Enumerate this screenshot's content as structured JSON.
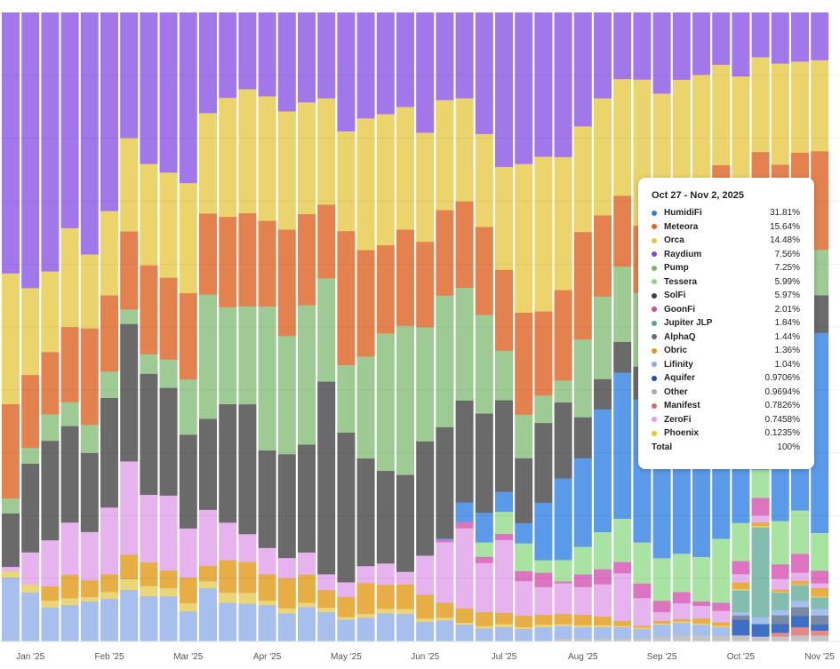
{
  "chart_data": {
    "type": "bar",
    "stacked": true,
    "normalized_percent": true,
    "title": "",
    "xlabel": "",
    "ylabel": "",
    "ylim": [
      0,
      100
    ],
    "grid": true,
    "bar_count": 42,
    "first_week": "Dec 30, 2024",
    "last_week": "Oct 27, 2025",
    "x_ticks": [
      {
        "bar": 1,
        "label": "Jan '25"
      },
      {
        "bar": 5,
        "label": "Feb '25"
      },
      {
        "bar": 9,
        "label": "Mar '25"
      },
      {
        "bar": 13,
        "label": "Apr '25"
      },
      {
        "bar": 17,
        "label": "May '25"
      },
      {
        "bar": 21,
        "label": "Jun '25"
      },
      {
        "bar": 25,
        "label": "Jul '25"
      },
      {
        "bar": 29,
        "label": "Aug '25"
      },
      {
        "bar": 33,
        "label": "Sep '25"
      },
      {
        "bar": 37,
        "label": "Oct '25"
      },
      {
        "bar": 41,
        "label": "Nov '25"
      }
    ],
    "series": [
      {
        "name": "Other",
        "color": "#c4c4c4",
        "values": [
          0,
          0,
          0,
          0,
          0,
          0,
          0,
          0,
          0,
          0,
          0,
          0,
          0,
          0,
          0,
          0,
          0,
          0,
          0,
          0,
          0,
          0,
          0,
          0,
          0,
          0,
          0,
          0,
          0.5,
          0.5,
          0.5,
          0.5,
          0.5,
          0.7,
          1,
          1,
          1,
          1,
          0.8,
          0.8,
          1,
          0.9694
        ]
      },
      {
        "name": "Manifest",
        "color": "#e08a8a",
        "values": [
          0,
          0,
          0,
          0,
          0,
          0,
          0,
          0,
          0,
          0,
          0,
          0,
          0,
          0,
          0,
          0,
          0,
          0,
          0,
          0,
          0,
          0,
          0,
          0,
          0,
          0,
          0,
          0,
          0,
          0,
          0,
          0,
          0,
          0,
          0,
          0,
          0,
          0,
          0,
          0.6,
          1.3,
          0.7826
        ]
      },
      {
        "name": "Aquifer",
        "color": "#3f6fc4",
        "values": [
          0,
          0,
          0,
          0,
          0,
          0,
          0,
          0,
          0,
          0,
          0,
          0,
          0,
          0,
          0,
          0,
          0,
          0,
          0,
          0,
          0,
          0,
          0,
          0,
          0,
          0,
          0,
          0,
          0,
          0,
          0,
          0,
          0,
          0,
          0,
          0,
          0,
          2.5,
          2,
          1.4,
          1.8,
          0.9706
        ]
      },
      {
        "name": "AlphaQ",
        "color": "#7b8aa4",
        "values": [
          0,
          0,
          0,
          0,
          0,
          0,
          0,
          0,
          0,
          0,
          0,
          0,
          0,
          0,
          0,
          0,
          0,
          0,
          0,
          0,
          0,
          0,
          0,
          0,
          0,
          0,
          0,
          0,
          0,
          0,
          0,
          0,
          0,
          0,
          0,
          0,
          0,
          0.7,
          0,
          1.4,
          1.4,
          1.44
        ]
      },
      {
        "name": "Lifinity",
        "color": "#a6bfec",
        "values": [
          10.2,
          7.8,
          5.4,
          5.8,
          6.4,
          6.8,
          8.2,
          7.2,
          7.2,
          4.8,
          8.5,
          6.2,
          6.0,
          5.8,
          4.5,
          5.5,
          4.7,
          3.5,
          3.8,
          4.5,
          4.4,
          3.1,
          3.4,
          2.7,
          2.1,
          2.3,
          2.0,
          2.3,
          2.0,
          1.8,
          1.8,
          1.8,
          1.5,
          2.0,
          2.0,
          1.7,
          1.3,
          0.5,
          1.1,
          0.8,
          1.0,
          1.04
        ]
      },
      {
        "name": "Jupiter JLP",
        "color": "#82bdb0",
        "values": [
          0,
          0,
          0,
          0,
          0,
          0,
          0,
          0,
          0,
          0,
          0,
          0,
          0,
          0,
          0,
          0,
          0,
          0,
          0,
          0,
          0,
          0,
          0,
          0,
          0,
          0,
          0,
          0,
          0,
          0,
          0,
          0,
          0,
          0,
          0,
          0,
          0,
          3.5,
          14.3,
          2.8,
          2.5,
          1.84
        ]
      },
      {
        "name": "Phoenix",
        "color": "#ebd579",
        "values": [
          1,
          1.3,
          1.1,
          1.1,
          0.7,
          1.1,
          1.7,
          1.6,
          1.3,
          1.3,
          1.1,
          1.6,
          1.7,
          0.7,
          0.8,
          0.7,
          0.7,
          0.4,
          0.6,
          0.7,
          0.8,
          0.5,
          0.4,
          0.3,
          0.4,
          0.5,
          0.3,
          0.4,
          0.3,
          0.3,
          0.3,
          0.2,
          0.2,
          0.2,
          0.2,
          0.2,
          0.2,
          0.2,
          0.2,
          0.1,
          0.1,
          0.1235
        ]
      },
      {
        "name": "Obric",
        "color": "#e6ae45",
        "values": [
          0,
          0,
          2.3,
          3.7,
          2.7,
          2.8,
          3.9,
          3.8,
          2.8,
          4.1,
          2.5,
          5.2,
          4.9,
          4.2,
          4.8,
          4.5,
          2.8,
          3.2,
          4.9,
          3.8,
          3.9,
          3.7,
          2.4,
          2.3,
          2.2,
          1.8,
          1.8,
          1.6,
          1.6,
          1.7,
          1.4,
          0.8,
          0.3,
          0.4,
          0.4,
          0.8,
          0.6,
          1.1,
          0.6,
          0.4,
          0.6,
          1.36
        ]
      },
      {
        "name": "ZeroFi",
        "color": "#e7b3ef",
        "values": [
          0.7,
          5.1,
          7.3,
          8.3,
          7.7,
          10.6,
          14.8,
          10.7,
          11.9,
          7.8,
          8.9,
          6.0,
          4.4,
          4.2,
          3.2,
          3.5,
          2.5,
          2.3,
          2.7,
          3.4,
          2.0,
          6.1,
          9.6,
          12.7,
          7.8,
          11.6,
          5.5,
          4.4,
          4.9,
          4.4,
          5.1,
          7.6,
          4.4,
          1.4,
          2.5,
          2.0,
          1.8,
          1.3,
          1.1,
          1.7,
          1.3,
          0.7458
        ]
      },
      {
        "name": "GoonFi",
        "color": "#dc74c2",
        "values": [
          0,
          0,
          0,
          0,
          0,
          0,
          0,
          0,
          0,
          0,
          0,
          0,
          0,
          0,
          0,
          0,
          0,
          0,
          0,
          0,
          0,
          0,
          0.4,
          1,
          1,
          1,
          1.6,
          2.3,
          0.3,
          2,
          2.4,
          1.8,
          2.3,
          1.8,
          1.8,
          0.7,
          1.3,
          2.1,
          2.8,
          2.3,
          3,
          2.01
        ]
      },
      {
        "name": "Tessera",
        "color": "#a9e3a1",
        "values": [
          0,
          0,
          0,
          0,
          0,
          0,
          0,
          0,
          0,
          0,
          0,
          0,
          0,
          0,
          0,
          0,
          0,
          0,
          0,
          0,
          0,
          0,
          0,
          0,
          2.3,
          3.5,
          4.4,
          2,
          3.4,
          4.4,
          5.9,
          6.9,
          6.5,
          6.8,
          6.1,
          7.1,
          10.2,
          6.1,
          4.5,
          6.9,
          6.9,
          5.99
        ]
      },
      {
        "name": "HumidiFi",
        "color": "#5a9ae8",
        "values": [
          0,
          0,
          0,
          0,
          0,
          0,
          0,
          0,
          0,
          0,
          0,
          0,
          0,
          0,
          0,
          0,
          0,
          0,
          0,
          0,
          0,
          0,
          0.2,
          3.1,
          4.7,
          3.2,
          3.2,
          9.2,
          13.0,
          14.1,
          19.5,
          23.3,
          22.6,
          35,
          34,
          34,
          32,
          30,
          20,
          30,
          29,
          31.81
        ]
      },
      {
        "name": "SolFi",
        "color": "#6b6a6b",
        "values": [
          8.5,
          14.1,
          15.8,
          15.3,
          12.6,
          17.4,
          21.8,
          19.2,
          17.1,
          14.9,
          14.5,
          18.9,
          20.5,
          15.5,
          16.5,
          17.2,
          30.6,
          23.7,
          17.1,
          14.7,
          15.4,
          17.8,
          17.7,
          16.2,
          15.8,
          14.6,
          10.3,
          12.7,
          12.1,
          6.5,
          4.8,
          4.9,
          5.2,
          3,
          3.5,
          4,
          5,
          5,
          5,
          5,
          5.5,
          5.97
        ]
      },
      {
        "name": "Pump",
        "color": "#9ecb94",
        "values": [
          2.4,
          2.5,
          4.2,
          3.8,
          4.5,
          4.2,
          2.3,
          3.1,
          4.5,
          8.8,
          19.8,
          15.5,
          15.5,
          22.9,
          18.8,
          22.2,
          16.4,
          10.7,
          16.2,
          21.8,
          23.7,
          17.8,
          20.9,
          17.9,
          15.7,
          7.9,
          6.9,
          4.4,
          3.5,
          12.4,
          13.1,
          12,
          11.7,
          8,
          8,
          8,
          7,
          7,
          8,
          7,
          7,
          7.25
        ]
      },
      {
        "name": "Meteora",
        "color": "#e3824f",
        "values": [
          15,
          11.6,
          9.9,
          11.9,
          15.4,
          12.1,
          12.4,
          14.1,
          13,
          13.7,
          12.9,
          14.4,
          14.7,
          13.6,
          16.9,
          14.5,
          11.7,
          21.2,
          16.9,
          14,
          15.3,
          13.3,
          13.6,
          13.7,
          14,
          12.9,
          16.2,
          13.4,
          14.4,
          17.1,
          12.9,
          11.3,
          10.6,
          12,
          12,
          12,
          15.5,
          10,
          17.6,
          14.7,
          15.5,
          15.64
        ]
      },
      {
        "name": "Orca",
        "color": "#ecd46c",
        "values": [
          20.8,
          13.8,
          12.8,
          15.7,
          11.8,
          13.4,
          14.8,
          16.1,
          16.7,
          17.5,
          16,
          19,
          19.6,
          19.8,
          18.8,
          17.8,
          16.9,
          15.8,
          20.9,
          20.8,
          19.5,
          17,
          17.5,
          16.4,
          14.8,
          16.4,
          23.6,
          24.7,
          21.2,
          16.8,
          18.6,
          18.6,
          23.1,
          16,
          18,
          18.8,
          16,
          19.5,
          15.1,
          16.1,
          14.5,
          14.48
        ]
      },
      {
        "name": "Raydium",
        "color": "#a277ea",
        "values": [
          41.5,
          43.8,
          41.1,
          34.2,
          38.6,
          31.5,
          19.9,
          24,
          25.4,
          27.1,
          16,
          13.6,
          12.1,
          13.3,
          15.7,
          14.3,
          13.6,
          18.8,
          16.8,
          16.1,
          15,
          18.7,
          13.9,
          13.6,
          19.3,
          24.6,
          24,
          23,
          23,
          18.1,
          13.6,
          10.6,
          10.6,
          12.9,
          10.7,
          9.9,
          8.3,
          10.2,
          7.1,
          8.1,
          7.8,
          7.56
        ]
      }
    ]
  },
  "tooltip": {
    "title": "Oct 27 - Nov 2, 2025",
    "rows": [
      {
        "label": "HumidiFi",
        "value": "31.81%",
        "color": "#2f7fe6"
      },
      {
        "label": "Meteora",
        "value": "15.64%",
        "color": "#e0622a"
      },
      {
        "label": "Orca",
        "value": "14.48%",
        "color": "#eac545"
      },
      {
        "label": "Raydium",
        "value": "7.56%",
        "color": "#7e45df"
      },
      {
        "label": "Pump",
        "value": "7.25%",
        "color": "#78b46c"
      },
      {
        "label": "Tessera",
        "value": "5.99%",
        "color": "#8fd88a"
      },
      {
        "label": "SolFi",
        "value": "5.97%",
        "color": "#3f3f3f"
      },
      {
        "label": "GoonFi",
        "value": "2.01%",
        "color": "#d4489f"
      },
      {
        "label": "Jupiter JLP",
        "value": "1.84%",
        "color": "#5aa596"
      },
      {
        "label": "AlphaQ",
        "value": "1.44%",
        "color": "#5f6b84"
      },
      {
        "label": "Obric",
        "value": "1.36%",
        "color": "#dc9a1c"
      },
      {
        "label": "Lifinity",
        "value": "1.04%",
        "color": "#8eabe2"
      },
      {
        "label": "Aquifer",
        "value": "0.9706%",
        "color": "#1f4fa8"
      },
      {
        "label": "Other",
        "value": "0.9694%",
        "color": "#aaaaaa"
      },
      {
        "label": "Manifest",
        "value": "0.7826%",
        "color": "#d86a6a"
      },
      {
        "label": "ZeroFi",
        "value": "0.7458%",
        "color": "#dea0e8"
      },
      {
        "label": "Phoenix",
        "value": "0.1235%",
        "color": "#e6c23a"
      }
    ],
    "total_label": "Total",
    "total_value": "100%"
  }
}
